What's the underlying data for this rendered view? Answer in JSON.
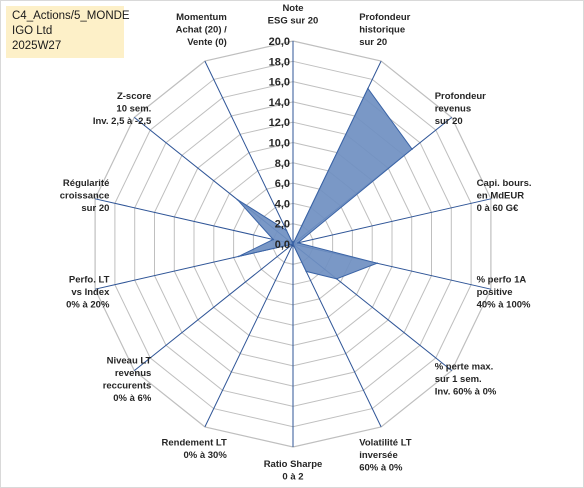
{
  "header_box": {
    "line1": "C4_Actions/5_MONDE",
    "line2": "IGO Ltd",
    "line3": "2025W27"
  },
  "chart_data": {
    "type": "radar",
    "rmin": 0,
    "rmax": 20,
    "tick_step": 2,
    "tick_labels": [
      "0,0",
      "2,0",
      "4,0",
      "6,0",
      "8,0",
      "10,0",
      "12,0",
      "14,0",
      "16,0",
      "18,0",
      "20,0"
    ],
    "grid": true,
    "axes": [
      {
        "label": [
          "Note",
          "ESG sur 20"
        ],
        "value": 0
      },
      {
        "label": [
          "Profondeur",
          "historique",
          "sur 20"
        ],
        "value": 17
      },
      {
        "label": [
          "Profondeur",
          "revenus",
          "sur 20"
        ],
        "value": 15
      },
      {
        "label": [
          "Capi. bours.",
          "en MdEUR",
          "0 à 60 G€"
        ],
        "value": 0.5
      },
      {
        "label": [
          "% perfo 1A",
          "positive",
          "40% à 100%"
        ],
        "value": 8.5
      },
      {
        "label": [
          "% perte max.",
          "sur 1 sem.",
          "Inv. 60% à 0%"
        ],
        "value": 5.5
      },
      {
        "label": [
          "Volatilité LT",
          "inversée",
          "60% à 0%"
        ],
        "value": 3
      },
      {
        "label": [
          "Ratio Sharpe",
          "0 à 2"
        ],
        "value": 0
      },
      {
        "label": [
          "Rendement LT",
          "0% à 30%"
        ],
        "value": 0
      },
      {
        "label": [
          "Niveau LT",
          "revenus",
          "reccurents",
          "0% à 6%"
        ],
        "value": 0
      },
      {
        "label": [
          "Perfo. LT",
          "vs Index",
          "0% à 20%"
        ],
        "value": 5.5
      },
      {
        "label": [
          "Régularité",
          "croissance",
          "sur 20"
        ],
        "value": 2
      },
      {
        "label": [
          "Z-score",
          "10 sem.",
          "Inv. 2,5 à -2,5"
        ],
        "value": 7
      },
      {
        "label": [
          "Momentum",
          "Achat (20) /",
          "Vente (0)"
        ],
        "value": 1.5
      }
    ],
    "colors": {
      "fill": "#6f8fc1",
      "stroke": "#3b64a6",
      "spoke": "#2f5597",
      "grid": "#bfbfbf"
    }
  }
}
